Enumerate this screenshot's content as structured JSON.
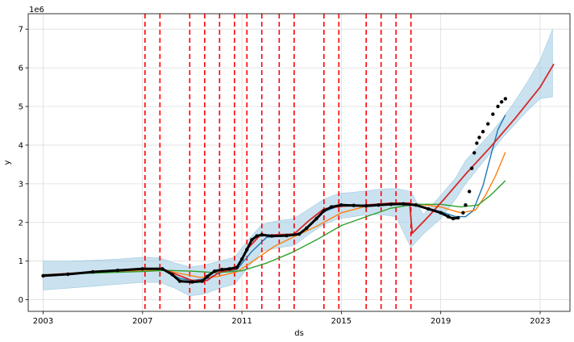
{
  "chart_data": {
    "type": "line",
    "xlabel": "ds",
    "ylabel": "y",
    "y_offset_label": "1e6",
    "xlim": [
      2002.4,
      2024.2
    ],
    "ylim": [
      -0.3,
      7.4
    ],
    "grid": true,
    "x_ticks": [
      2003,
      2007,
      2011,
      2015,
      2019,
      2023
    ],
    "y_ticks": [
      0,
      1,
      2,
      3,
      4,
      5,
      6,
      7
    ],
    "colors": {
      "band": "#9ecae1",
      "changepoint": "#ff0000",
      "actual": "#000000",
      "blue": "#1f77b4",
      "orange": "#ff7f0e",
      "green": "#2ca02c",
      "red": "#d62728"
    },
    "changepoints": [
      2007.1,
      2007.7,
      2008.9,
      2009.5,
      2010.1,
      2010.7,
      2011.2,
      2011.8,
      2012.5,
      2013.1,
      2014.3,
      2014.9,
      2016.0,
      2016.6,
      2017.2,
      2017.8
    ],
    "uncertainty": {
      "x": [
        2003.0,
        2004.0,
        2005.0,
        2006.0,
        2007.0,
        2007.7,
        2008.3,
        2008.9,
        2009.5,
        2010.1,
        2010.7,
        2011.2,
        2011.8,
        2012.5,
        2013.1,
        2013.7,
        2014.3,
        2014.9,
        2015.5,
        2016.0,
        2016.6,
        2017.2,
        2017.8,
        2018.3,
        2019.0,
        2019.6,
        2020.0,
        2020.5,
        2021.0,
        2021.5,
        2022.0,
        2022.5,
        2023.0,
        2023.5
      ],
      "upper": [
        1.0,
        1.0,
        1.02,
        1.05,
        1.1,
        1.08,
        0.95,
        0.85,
        0.9,
        1.0,
        1.1,
        1.5,
        1.95,
        2.05,
        2.1,
        2.35,
        2.6,
        2.75,
        2.78,
        2.82,
        2.86,
        2.88,
        2.8,
        2.2,
        2.7,
        3.15,
        3.6,
        3.95,
        4.3,
        4.7,
        5.15,
        5.65,
        6.2,
        7.0
      ],
      "lower": [
        0.25,
        0.3,
        0.35,
        0.4,
        0.45,
        0.45,
        0.3,
        0.1,
        0.15,
        0.3,
        0.4,
        0.8,
        1.25,
        1.35,
        1.4,
        1.7,
        1.95,
        2.1,
        2.15,
        2.2,
        2.2,
        2.15,
        1.35,
        1.7,
        2.1,
        2.6,
        3.0,
        3.4,
        3.8,
        4.2,
        4.55,
        4.9,
        5.2,
        5.25
      ]
    },
    "actual": {
      "x": [
        2003.0,
        2004.0,
        2005.0,
        2006.0,
        2007.0,
        2007.8,
        2008.2,
        2008.5,
        2009.0,
        2009.4,
        2009.6,
        2009.9,
        2010.2,
        2010.5,
        2010.8,
        2011.0,
        2011.2,
        2011.4,
        2011.6,
        2011.8,
        2012.2,
        2012.8,
        2013.3,
        2013.6,
        2014.0,
        2014.3,
        2014.6,
        2015.0,
        2015.5,
        2016.0,
        2016.5,
        2017.0,
        2017.5,
        2018.0,
        2018.5,
        2019.0,
        2019.3,
        2019.5,
        2019.7,
        2019.9,
        2020.0,
        2020.15,
        2020.25,
        2020.35,
        2020.45,
        2020.55,
        2020.7,
        2020.9,
        2021.1,
        2021.3,
        2021.45,
        2021.6
      ],
      "y": [
        0.62,
        0.66,
        0.72,
        0.76,
        0.8,
        0.8,
        0.65,
        0.48,
        0.46,
        0.48,
        0.6,
        0.74,
        0.78,
        0.8,
        0.84,
        1.05,
        1.3,
        1.55,
        1.65,
        1.68,
        1.65,
        1.66,
        1.7,
        1.85,
        2.1,
        2.3,
        2.4,
        2.45,
        2.44,
        2.43,
        2.45,
        2.47,
        2.48,
        2.45,
        2.35,
        2.25,
        2.15,
        2.1,
        2.12,
        2.25,
        2.45,
        2.8,
        3.4,
        3.8,
        4.05,
        4.2,
        4.35,
        4.55,
        4.8,
        5.0,
        5.12,
        5.2
      ]
    },
    "series": [
      {
        "color": "#1f77b4",
        "x": [
          2003.0,
          2005.0,
          2007.0,
          2007.8,
          2008.5,
          2009.0,
          2009.6,
          2010.2,
          2010.8,
          2011.4,
          2012.0,
          2012.8,
          2013.4,
          2014.3,
          2015.0,
          2016.0,
          2017.0,
          2018.0,
          2019.0,
          2019.6,
          2020.0,
          2020.3,
          2020.7,
          2021.0,
          2021.3,
          2021.6
        ],
        "y": [
          0.63,
          0.72,
          0.78,
          0.78,
          0.55,
          0.5,
          0.55,
          0.72,
          0.78,
          1.25,
          1.62,
          1.65,
          1.72,
          2.28,
          2.45,
          2.44,
          2.46,
          2.46,
          2.28,
          2.15,
          2.15,
          2.3,
          2.95,
          3.7,
          4.4,
          4.78
        ]
      },
      {
        "color": "#ff7f0e",
        "x": [
          2003.0,
          2005.0,
          2007.0,
          2007.8,
          2008.5,
          2009.3,
          2010.0,
          2010.8,
          2011.5,
          2012.3,
          2013.0,
          2014.0,
          2015.0,
          2016.0,
          2017.0,
          2018.0,
          2019.0,
          2019.8,
          2020.4,
          2020.8,
          2021.2,
          2021.6
        ],
        "y": [
          0.64,
          0.7,
          0.76,
          0.78,
          0.68,
          0.58,
          0.6,
          0.72,
          1.02,
          1.38,
          1.6,
          1.9,
          2.25,
          2.42,
          2.48,
          2.48,
          2.4,
          2.25,
          2.32,
          2.7,
          3.2,
          3.82
        ]
      },
      {
        "color": "#2ca02c",
        "x": [
          2003.0,
          2005.0,
          2007.0,
          2008.0,
          2009.0,
          2010.0,
          2011.0,
          2012.0,
          2013.0,
          2014.0,
          2015.0,
          2016.0,
          2017.0,
          2018.0,
          2019.0,
          2019.8,
          2020.5,
          2021.0,
          2021.6
        ],
        "y": [
          0.65,
          0.69,
          0.73,
          0.76,
          0.74,
          0.7,
          0.75,
          0.95,
          1.22,
          1.55,
          1.92,
          2.15,
          2.37,
          2.47,
          2.47,
          2.4,
          2.45,
          2.7,
          3.08
        ]
      },
      {
        "color": "#d62728",
        "x": [
          2003.0,
          2005.0,
          2007.0,
          2007.8,
          2008.5,
          2009.0,
          2009.6,
          2010.1,
          2010.8,
          2011.2,
          2011.7,
          2012.3,
          2013.1,
          2013.7,
          2014.3,
          2015.0,
          2016.0,
          2017.0,
          2017.75,
          2017.85,
          2018.5,
          2019.2,
          2020.0,
          2021.0,
          2022.0,
          2023.0,
          2023.55
        ],
        "y": [
          0.64,
          0.72,
          0.8,
          0.8,
          0.62,
          0.5,
          0.5,
          0.72,
          0.8,
          1.3,
          1.65,
          1.68,
          1.7,
          2.05,
          2.35,
          2.42,
          2.45,
          2.5,
          2.5,
          1.72,
          2.15,
          2.65,
          3.25,
          3.95,
          4.7,
          5.5,
          6.1
        ]
      }
    ]
  }
}
